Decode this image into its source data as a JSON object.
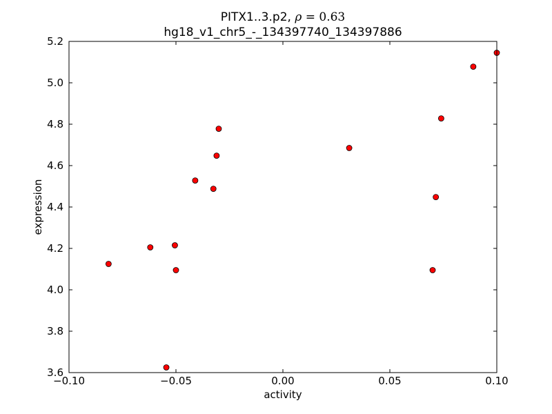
{
  "chart_data": {
    "type": "scatter",
    "title": "PITX1..3.p2, ",
    "title_rho_symbol": "ρ",
    "title_rho_value": " = 0.63",
    "subtitle": "hg18_v1_chr5_-_134397740_134397886",
    "xlabel": "activity",
    "ylabel": "expression",
    "xlim": [
      -0.1,
      0.1
    ],
    "ylim": [
      3.6,
      5.2
    ],
    "x_ticks": [
      -0.1,
      -0.05,
      0.0,
      0.05,
      0.1
    ],
    "x_tick_labels": [
      "−0.10",
      "−0.05",
      "0.00",
      "0.05",
      "0.10"
    ],
    "y_ticks": [
      3.6,
      3.8,
      4.0,
      4.2,
      4.4,
      4.6,
      4.8,
      5.0,
      5.2
    ],
    "y_tick_labels": [
      "3.6",
      "3.8",
      "4.0",
      "4.2",
      "4.4",
      "4.6",
      "4.8",
      "5.0",
      "5.2"
    ],
    "grid": false,
    "marker_color": "#ff0000",
    "marker_edge_color": "#000000",
    "points": [
      {
        "x": -0.0815,
        "y": 4.125
      },
      {
        "x": -0.062,
        "y": 4.205
      },
      {
        "x": -0.0505,
        "y": 4.215
      },
      {
        "x": -0.05,
        "y": 4.095
      },
      {
        "x": -0.0545,
        "y": 3.625
      },
      {
        "x": -0.041,
        "y": 4.528
      },
      {
        "x": -0.0325,
        "y": 4.488
      },
      {
        "x": -0.031,
        "y": 4.648
      },
      {
        "x": -0.03,
        "y": 4.778
      },
      {
        "x": 0.031,
        "y": 4.685
      },
      {
        "x": 0.07,
        "y": 4.095
      },
      {
        "x": 0.0715,
        "y": 4.448
      },
      {
        "x": 0.074,
        "y": 4.828
      },
      {
        "x": 0.089,
        "y": 5.078
      },
      {
        "x": 0.1,
        "y": 5.145
      }
    ]
  }
}
